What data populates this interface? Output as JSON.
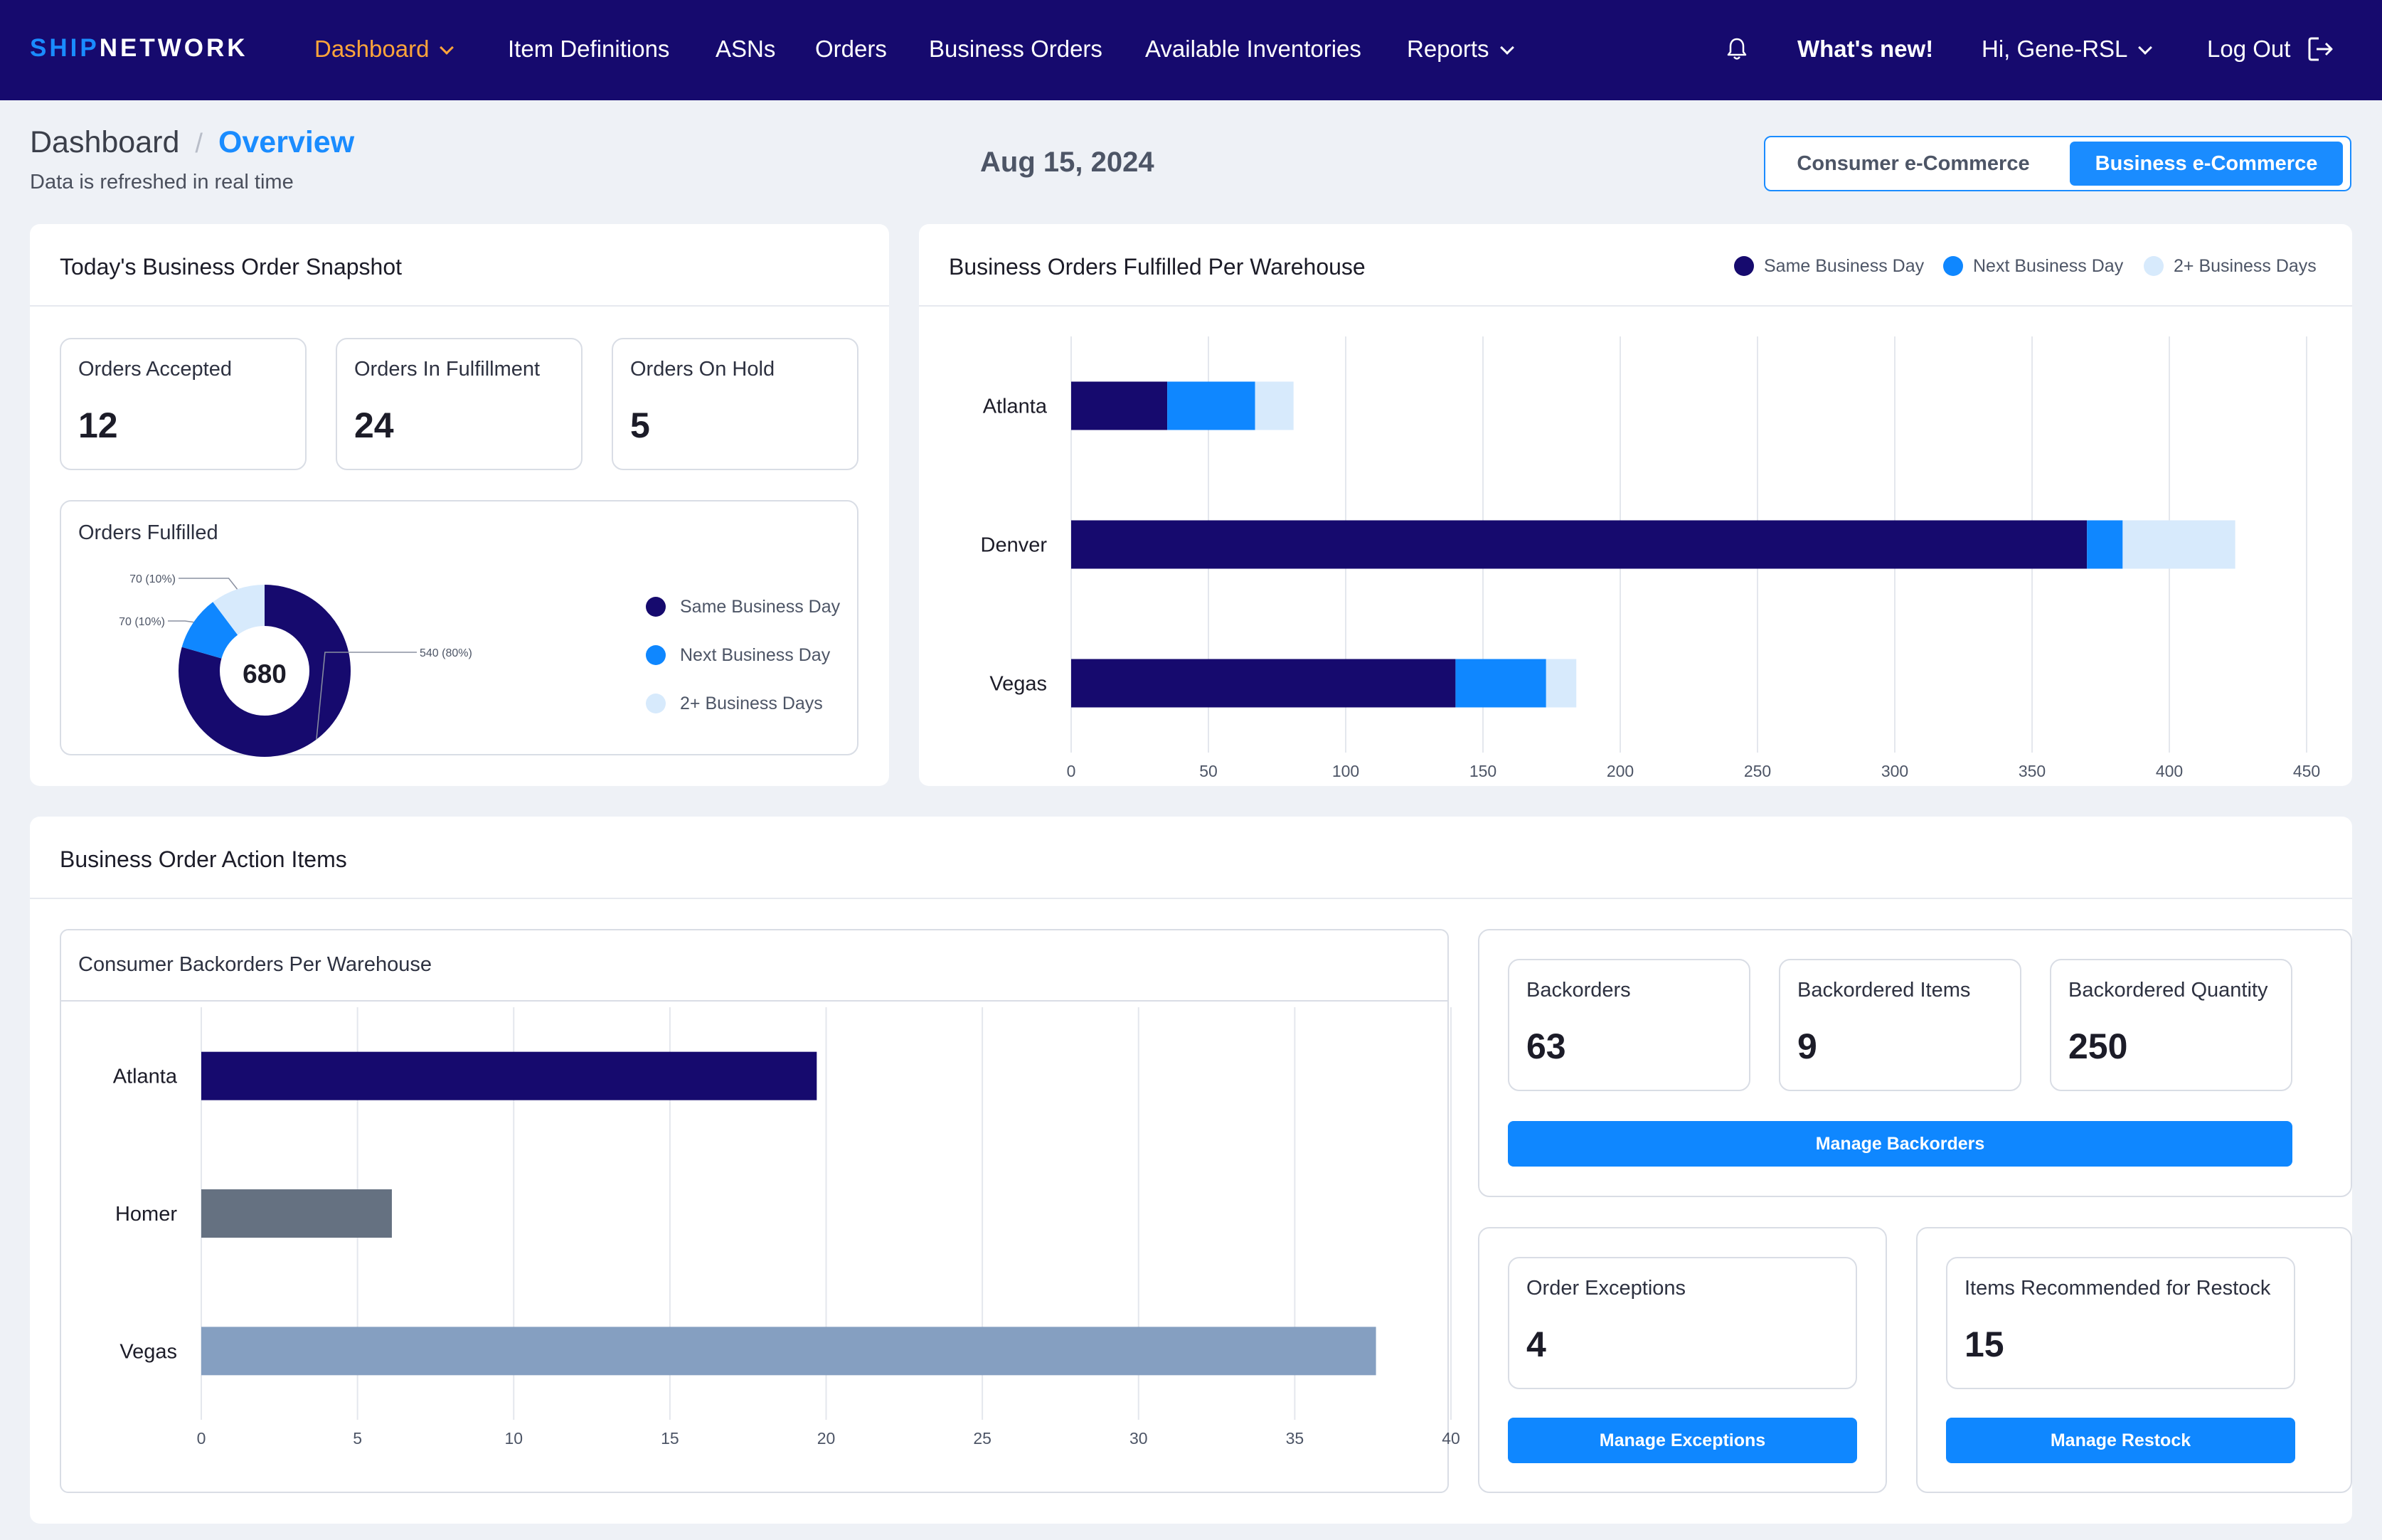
{
  "nav": {
    "logo_ship": "SHIP",
    "logo_network": "NETWORK",
    "items": [
      "Dashboard",
      "Item Definitions",
      "ASNs",
      "Orders",
      "Business Orders",
      "Available Inventories",
      "Reports"
    ],
    "whats_new": "What's new!",
    "user": "Hi, Gene-RSL",
    "logout": "Log Out"
  },
  "page": {
    "breadcrumb_root": "Dashboard",
    "breadcrumb_current": "Overview",
    "subtitle": "Data is refreshed in real time",
    "date": "Aug 15, 2024",
    "toggle": [
      "Consumer e-Commerce",
      "Business e-Commerce"
    ],
    "toggle_selected": "Business e-Commerce"
  },
  "snapshot": {
    "title": "Today's Business Order Snapshot",
    "cards": [
      {
        "label": "Orders Accepted",
        "value": "12"
      },
      {
        "label": "Orders In Fulfillment",
        "value": "24"
      },
      {
        "label": "Orders On Hold",
        "value": "5"
      }
    ],
    "fulfilled_title": "Orders Fulfilled",
    "total": "680",
    "slices": [
      {
        "name": "Same Business Day",
        "value": 540,
        "label": "540 (80%)",
        "color": "#160a6e"
      },
      {
        "name": "Next Business Day",
        "value": 70,
        "label": "70 (10%)",
        "color": "#0f87ff"
      },
      {
        "name": "2+ Business Days",
        "value": 70,
        "label": "70 (10%)",
        "color": "#d7eafc"
      }
    ]
  },
  "warehouse_chart": {
    "title": "Business Orders Fulfilled Per Warehouse",
    "legend": [
      "Same Business Day",
      "Next Business Day",
      "2+ Business Days"
    ]
  },
  "action": {
    "title": "Business Order Action Items",
    "backorder_chart_title": "Consumer Backorders Per Warehouse",
    "backorder_cards": [
      {
        "label": "Backorders",
        "value": "63"
      },
      {
        "label": "Backordered Items",
        "value": "9"
      },
      {
        "label": "Backordered Quantity",
        "value": "250"
      }
    ],
    "manage_backorders": "Manage Backorders",
    "exceptions": {
      "label": "Order Exceptions",
      "value": "4",
      "button": "Manage Exceptions"
    },
    "restock": {
      "label": "Items Recommended for Restock",
      "value": "15",
      "button": "Manage Restock"
    }
  },
  "chart_data": [
    {
      "type": "bar",
      "orientation": "horizontal",
      "stacked": true,
      "title": "Business Orders Fulfilled Per Warehouse",
      "categories": [
        "Atlanta",
        "Denver",
        "Vegas"
      ],
      "series": [
        {
          "name": "Same Business Day",
          "values": [
            35,
            370,
            140
          ],
          "color": "#160a6e"
        },
        {
          "name": "Next Business Day",
          "values": [
            32,
            13,
            33
          ],
          "color": "#0f87ff"
        },
        {
          "name": "2+ Business Days",
          "values": [
            14,
            41,
            11
          ],
          "color": "#d7eafc"
        }
      ],
      "xlim": [
        0,
        450
      ],
      "xticks": [
        0,
        50,
        100,
        150,
        200,
        250,
        300,
        350,
        400,
        450
      ],
      "grid": true,
      "legend": "top-right"
    },
    {
      "type": "bar",
      "orientation": "horizontal",
      "title": "Consumer Backorders Per Warehouse",
      "categories": [
        "Atlanta",
        "Homer",
        "Vegas"
      ],
      "values": [
        19.7,
        6.1,
        37.6
      ],
      "colors": [
        "#160a6e",
        "#657181",
        "#859fc1"
      ],
      "xlim": [
        0,
        40
      ],
      "xticks": [
        0,
        5,
        10,
        15,
        20,
        25,
        30,
        35,
        40
      ],
      "grid": true
    }
  ]
}
